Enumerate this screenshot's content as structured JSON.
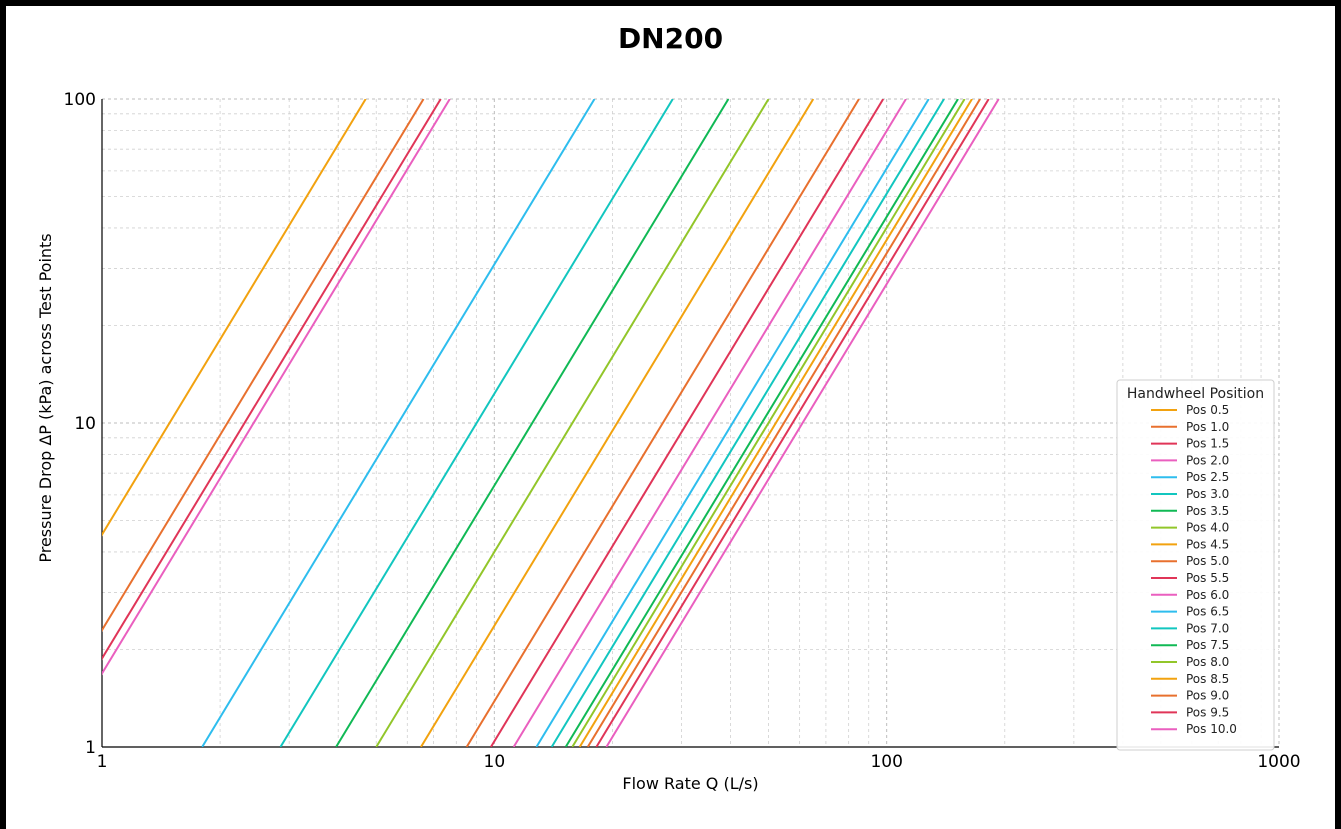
{
  "chart_data": {
    "type": "line",
    "title": "DN200",
    "xlabel": "Flow Rate Q (L/s)",
    "ylabel": "Pressure Drop ΔP (kPa) across Test Points",
    "xscale": "log",
    "yscale": "log",
    "xlim": [
      1,
      1000
    ],
    "ylim": [
      1,
      100
    ],
    "x_ticks": [
      "1",
      "10",
      "100",
      "1000"
    ],
    "y_ticks": [
      "1",
      "10",
      "100"
    ],
    "grid": true,
    "legend": {
      "title": "Handwheel Position",
      "placement": "lower-right"
    },
    "series": [
      {
        "name": "Pos 0.5",
        "color": "#f2a20f",
        "kv_x_at_y1": 0.47,
        "kv_x_at_y100": 4.7
      },
      {
        "name": "Pos 1.0",
        "color": "#e8702e",
        "kv_x_at_y1": 0.66,
        "kv_x_at_y100": 6.6
      },
      {
        "name": "Pos 1.5",
        "color": "#e03558",
        "kv_x_at_y1": 0.73,
        "kv_x_at_y100": 7.3
      },
      {
        "name": "Pos 2.0",
        "color": "#ea5fbf",
        "kv_x_at_y1": 0.77,
        "kv_x_at_y100": 7.7
      },
      {
        "name": "Pos 2.5",
        "color": "#2ebdee",
        "kv_x_at_y1": 1.8,
        "kv_x_at_y100": 18
      },
      {
        "name": "Pos 3.0",
        "color": "#12c6bf",
        "kv_x_at_y1": 2.85,
        "kv_x_at_y100": 28.5
      },
      {
        "name": "Pos 3.5",
        "color": "#10b955",
        "kv_x_at_y1": 3.95,
        "kv_x_at_y100": 39.5
      },
      {
        "name": "Pos 4.0",
        "color": "#92c62a",
        "kv_x_at_y1": 5.0,
        "kv_x_at_y100": 50
      },
      {
        "name": "Pos 4.5",
        "color": "#f2a20f",
        "kv_x_at_y1": 6.5,
        "kv_x_at_y100": 65
      },
      {
        "name": "Pos 5.0",
        "color": "#e8702e",
        "kv_x_at_y1": 8.5,
        "kv_x_at_y100": 85
      },
      {
        "name": "Pos 5.5",
        "color": "#e03558",
        "kv_x_at_y1": 9.8,
        "kv_x_at_y100": 98
      },
      {
        "name": "Pos 6.0",
        "color": "#ea5fbf",
        "kv_x_at_y1": 11.2,
        "kv_x_at_y100": 112
      },
      {
        "name": "Pos 6.5",
        "color": "#2ebdee",
        "kv_x_at_y1": 12.8,
        "kv_x_at_y100": 128
      },
      {
        "name": "Pos 7.0",
        "color": "#12c6bf",
        "kv_x_at_y1": 14.0,
        "kv_x_at_y100": 140
      },
      {
        "name": "Pos 7.5",
        "color": "#10b955",
        "kv_x_at_y1": 15.2,
        "kv_x_at_y100": 152
      },
      {
        "name": "Pos 8.0",
        "color": "#92c62a",
        "kv_x_at_y1": 15.8,
        "kv_x_at_y100": 158
      },
      {
        "name": "Pos 8.5",
        "color": "#f2a20f",
        "kv_x_at_y1": 16.5,
        "kv_x_at_y100": 165
      },
      {
        "name": "Pos 9.0",
        "color": "#e8702e",
        "kv_x_at_y1": 17.3,
        "kv_x_at_y100": 173
      },
      {
        "name": "Pos 9.5",
        "color": "#e03558",
        "kv_x_at_y1": 18.2,
        "kv_x_at_y100": 182
      },
      {
        "name": "Pos 10.0",
        "color": "#ea5fbf",
        "kv_x_at_y1": 19.3,
        "kv_x_at_y100": 193
      }
    ]
  }
}
